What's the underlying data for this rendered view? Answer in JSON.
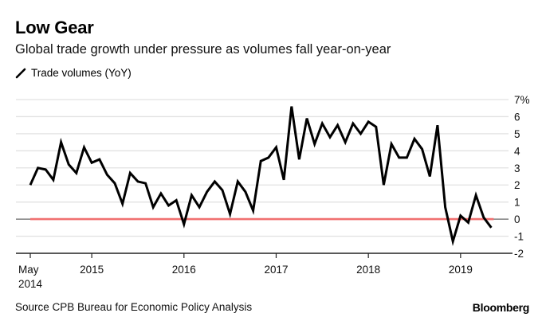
{
  "header": {
    "title": "Low Gear",
    "subtitle": "Global trade growth under pressure as volumes fall year-on-year"
  },
  "legend": {
    "entries": [
      {
        "label": "Trade volumes (YoY)",
        "color": "#000000"
      }
    ]
  },
  "footer": {
    "source": "Source CPB Bureau for Economic Policy Analysis",
    "brand": "Bloomberg"
  },
  "chart_data": {
    "type": "line",
    "title": "Low Gear",
    "subtitle": "Global trade growth under pressure as volumes fall year-on-year",
    "xlabel": "",
    "ylabel": "",
    "ylim": [
      -2,
      7
    ],
    "y_ticks": [
      -2,
      -1,
      0,
      1,
      2,
      3,
      4,
      5,
      6,
      7
    ],
    "y_tick_labels": [
      "-2",
      "-1",
      "0",
      "1",
      "2",
      "3",
      "4",
      "5",
      "6",
      "7%"
    ],
    "y_axis_side": "right",
    "x_ticks": [
      {
        "month_index": 0,
        "label": [
          "May",
          "2014"
        ]
      },
      {
        "month_index": 8,
        "label": [
          "2015"
        ]
      },
      {
        "month_index": 20,
        "label": [
          "2016"
        ]
      },
      {
        "month_index": 32,
        "label": [
          "2017"
        ]
      },
      {
        "month_index": 44,
        "label": [
          "2018"
        ]
      },
      {
        "month_index": 56,
        "label": [
          "2019"
        ]
      }
    ],
    "x_start": "2014-05",
    "x_end": "2019-05",
    "grid": true,
    "legend_position": "top-left",
    "reference_line": {
      "value": 0,
      "color": "#f07070"
    },
    "series": [
      {
        "name": "Trade volumes (YoY)",
        "color": "#000000",
        "x": [
          "2014-05",
          "2014-06",
          "2014-07",
          "2014-08",
          "2014-09",
          "2014-10",
          "2014-11",
          "2014-12",
          "2015-01",
          "2015-02",
          "2015-03",
          "2015-04",
          "2015-05",
          "2015-06",
          "2015-07",
          "2015-08",
          "2015-09",
          "2015-10",
          "2015-11",
          "2015-12",
          "2016-01",
          "2016-02",
          "2016-03",
          "2016-04",
          "2016-05",
          "2016-06",
          "2016-07",
          "2016-08",
          "2016-09",
          "2016-10",
          "2016-11",
          "2016-12",
          "2017-01",
          "2017-02",
          "2017-03",
          "2017-04",
          "2017-05",
          "2017-06",
          "2017-07",
          "2017-08",
          "2017-09",
          "2017-10",
          "2017-11",
          "2017-12",
          "2018-01",
          "2018-02",
          "2018-03",
          "2018-04",
          "2018-05",
          "2018-06",
          "2018-07",
          "2018-08",
          "2018-09",
          "2018-10",
          "2018-11",
          "2018-12",
          "2019-01",
          "2019-02",
          "2019-03",
          "2019-04",
          "2019-05"
        ],
        "values": [
          2.0,
          3.0,
          2.9,
          2.3,
          4.5,
          3.2,
          2.7,
          4.2,
          3.3,
          3.5,
          2.6,
          2.1,
          0.9,
          2.7,
          2.2,
          2.1,
          0.7,
          1.5,
          0.8,
          1.1,
          -0.3,
          1.4,
          0.7,
          1.6,
          2.2,
          1.7,
          0.3,
          2.2,
          1.6,
          0.5,
          3.4,
          3.6,
          4.2,
          2.3,
          6.6,
          3.5,
          5.9,
          4.4,
          5.6,
          4.8,
          5.5,
          4.5,
          5.6,
          5.0,
          5.7,
          5.4,
          2.0,
          4.4,
          3.6,
          3.6,
          4.7,
          4.1,
          2.5,
          5.5,
          0.7,
          -1.3,
          0.2,
          -0.2,
          1.4,
          0.1,
          -0.5
        ]
      }
    ]
  }
}
